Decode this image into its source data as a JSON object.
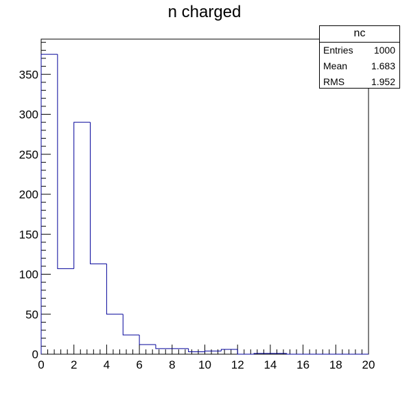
{
  "chart_data": {
    "type": "bar",
    "title": "n charged",
    "xlabel": "",
    "ylabel": "",
    "xlim": [
      0,
      20
    ],
    "ylim": [
      0,
      394
    ],
    "bin_edges": [
      0,
      1,
      2,
      3,
      4,
      5,
      6,
      7,
      8,
      9,
      10,
      11,
      12,
      13,
      14,
      15,
      16,
      17,
      18,
      19,
      20
    ],
    "values": [
      375,
      107,
      290,
      113,
      50,
      24,
      12,
      7,
      7,
      3,
      4,
      6,
      0,
      1,
      1,
      0,
      0,
      0,
      0,
      0
    ],
    "x_ticks": [
      0,
      2,
      4,
      6,
      8,
      10,
      12,
      14,
      16,
      18,
      20
    ],
    "y_ticks": [
      0,
      50,
      100,
      150,
      200,
      250,
      300,
      350
    ],
    "line_color": "#000099",
    "grid": false,
    "legend": "top-right"
  },
  "stats": {
    "name": "nc",
    "rows": [
      {
        "label": "Entries",
        "value": "1000"
      },
      {
        "label": "Mean",
        "value": "1.683"
      },
      {
        "label": "RMS",
        "value": "1.952"
      }
    ]
  }
}
